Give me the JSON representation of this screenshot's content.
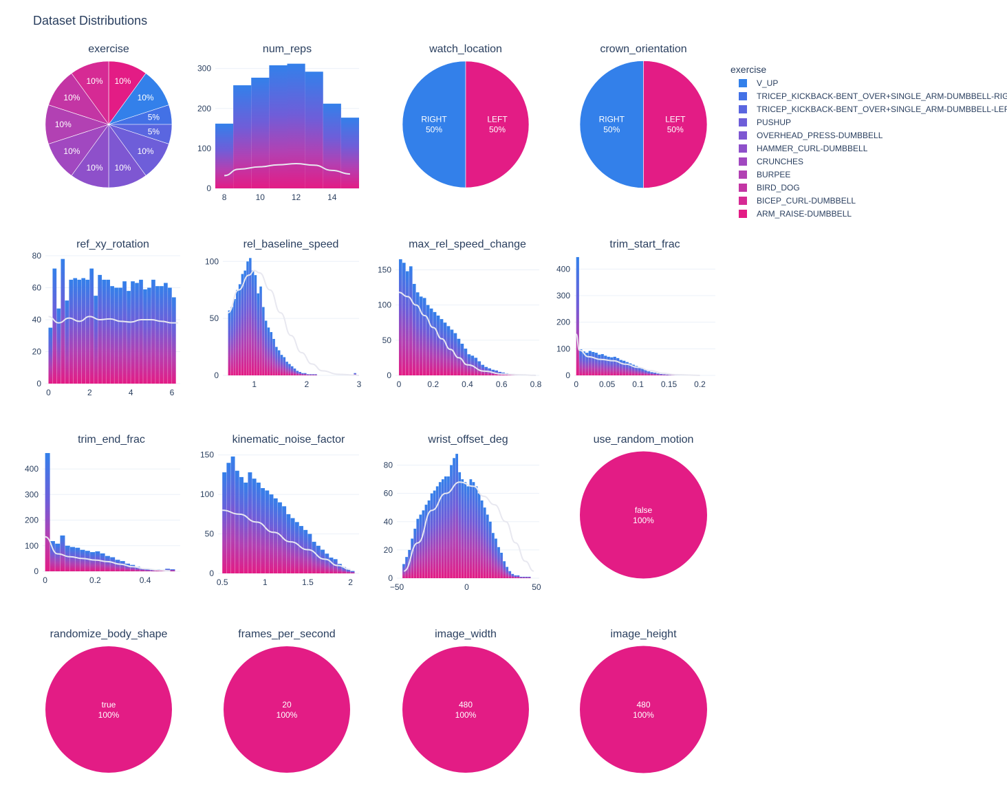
{
  "title": "Dataset Distributions",
  "legend": {
    "title": "exercise",
    "placement": "right",
    "items": [
      {
        "label": "V_UP",
        "color": "#3380ea"
      },
      {
        "label": "TRICEP_KICKBACK-BENT_OVER+SINGLE_ARM-DUMBBELL-RIGHT",
        "color": "#4371e6"
      },
      {
        "label": "TRICEP_KICKBACK-BENT_OVER+SINGLE_ARM-DUMBBELL-LEFT",
        "color": "#5a66e0"
      },
      {
        "label": "PUSHUP",
        "color": "#6e5ed9"
      },
      {
        "label": "OVERHEAD_PRESS-DUMBBELL",
        "color": "#7e57d2"
      },
      {
        "label": "HAMMER_CURL-DUMBBELL",
        "color": "#8e50ca"
      },
      {
        "label": "CRUNCHES",
        "color": "#a148c0"
      },
      {
        "label": "BURPEE",
        "color": "#b241b3"
      },
      {
        "label": "BIRD_DOG",
        "color": "#c335a4"
      },
      {
        "label": "BICEP_CURL-DUMBBELL",
        "color": "#d62a94"
      },
      {
        "label": "ARM_RAISE-DUMBBELL",
        "color": "#e31c85"
      }
    ]
  },
  "chart_data": [
    {
      "type": "pie",
      "title": "exercise",
      "labels": [
        "V_UP",
        "TRICEP_KICKBACK-BENT_OVER+SINGLE_ARM-DUMBBELL-RIGHT",
        "TRICEP_KICKBACK-BENT_OVER+SINGLE_ARM-DUMBBELL-LEFT",
        "PUSHUP",
        "OVERHEAD_PRESS-DUMBBELL",
        "HAMMER_CURL-DUMBBELL",
        "CRUNCHES",
        "BURPEE",
        "BIRD_DOG",
        "BICEP_CURL-DUMBBELL",
        "ARM_RAISE-DUMBBELL"
      ],
      "values": [
        10,
        10,
        5,
        5,
        10,
        10,
        10,
        10,
        10,
        10,
        10
      ],
      "text": [
        "10%",
        "10%",
        "5%",
        "5%",
        "10%",
        "10%",
        "10%",
        "10%",
        "10%",
        "10%",
        "10%"
      ],
      "colors": [
        "#e31c85",
        "#3380ea",
        "#4371e6",
        "#5a66e0",
        "#6e5ed9",
        "#7e57d2",
        "#8e50ca",
        "#a148c0",
        "#b241b3",
        "#c335a4",
        "#d62a94"
      ]
    },
    {
      "type": "bar",
      "title": "num_reps",
      "x": [
        8,
        9,
        10,
        11,
        12,
        13,
        14,
        15
      ],
      "values": [
        162,
        258,
        277,
        308,
        312,
        292,
        212,
        177
      ],
      "kde": [
        [
          8,
          32
        ],
        [
          8.8,
          48
        ],
        [
          10,
          54
        ],
        [
          11,
          59
        ],
        [
          12,
          62
        ],
        [
          13,
          58
        ],
        [
          14,
          45
        ],
        [
          15,
          36
        ]
      ],
      "xlim": [
        7.5,
        15.5
      ],
      "ylim": [
        0,
        320
      ],
      "xticks": [
        8,
        10,
        12,
        14
      ],
      "yticks": [
        0,
        100,
        200,
        300
      ]
    },
    {
      "type": "pie",
      "title": "watch_location",
      "labels": [
        "RIGHT",
        "LEFT"
      ],
      "values": [
        50,
        50
      ],
      "text": [
        "RIGHT\n50%",
        "LEFT\n50%"
      ],
      "colors": [
        "#3380ea",
        "#e31c85"
      ],
      "start": "left"
    },
    {
      "type": "pie",
      "title": "crown_orientation",
      "labels": [
        "RIGHT",
        "LEFT"
      ],
      "values": [
        50,
        50
      ],
      "text": [
        "RIGHT\n50%",
        "LEFT\n50%"
      ],
      "colors": [
        "#3380ea",
        "#e31c85"
      ],
      "start": "left"
    },
    {
      "type": "bar",
      "title": "ref_xy_rotation",
      "x0": 0,
      "dx": 0.2,
      "values": [
        35,
        72,
        47,
        78,
        52,
        65,
        66,
        65,
        66,
        65,
        72,
        55,
        68,
        65,
        65,
        61,
        60,
        60,
        64,
        58,
        64,
        63,
        65,
        59,
        60,
        65,
        61,
        61,
        63,
        60,
        54
      ],
      "kde": [
        [
          0,
          42
        ],
        [
          0.5,
          38
        ],
        [
          1,
          41
        ],
        [
          1.5,
          39
        ],
        [
          2,
          42
        ],
        [
          2.5,
          40
        ],
        [
          3,
          40.5
        ],
        [
          3.5,
          39
        ],
        [
          4,
          38.5
        ],
        [
          4.5,
          40
        ],
        [
          5,
          40
        ],
        [
          5.5,
          39
        ],
        [
          6,
          38
        ],
        [
          6.3,
          38
        ]
      ],
      "xlim": [
        -0.15,
        6.4
      ],
      "ylim": [
        0,
        80
      ],
      "xticks": [
        0,
        2,
        4,
        6
      ],
      "yticks": [
        0,
        20,
        40,
        60,
        80
      ]
    },
    {
      "type": "bar",
      "title": "rel_baseline_speed",
      "x0": 0.5,
      "dx": 0.05,
      "values": [
        57,
        60,
        67,
        75,
        80,
        89,
        92,
        100,
        103,
        92,
        88,
        72,
        78,
        60,
        48,
        42,
        38,
        32,
        25,
        22,
        18,
        16,
        12,
        10,
        8,
        6,
        4,
        3,
        2,
        2,
        1,
        1,
        1,
        1,
        0,
        0,
        0,
        0,
        0,
        0,
        0,
        0,
        0,
        0,
        0,
        0,
        0,
        0,
        2
      ],
      "kde": [
        [
          0.5,
          55
        ],
        [
          0.7,
          75
        ],
        [
          0.9,
          88
        ],
        [
          1.0,
          92
        ],
        [
          1.1,
          90
        ],
        [
          1.3,
          75
        ],
        [
          1.5,
          55
        ],
        [
          1.7,
          35
        ],
        [
          1.9,
          20
        ],
        [
          2.1,
          10
        ],
        [
          2.3,
          4
        ],
        [
          2.6,
          1
        ],
        [
          3.0,
          0
        ]
      ],
      "xlim": [
        0.4,
        3.0
      ],
      "ylim": [
        0,
        105
      ],
      "xticks": [
        1,
        2,
        3
      ],
      "yticks": [
        0,
        50,
        100
      ]
    },
    {
      "type": "bar",
      "title": "max_rel_speed_change",
      "x0": 0,
      "dx": 0.02,
      "values": [
        165,
        160,
        148,
        155,
        130,
        118,
        112,
        110,
        100,
        95,
        90,
        85,
        80,
        75,
        70,
        65,
        60,
        52,
        45,
        38,
        30,
        28,
        25,
        20,
        15,
        12,
        10,
        8,
        7,
        5,
        4,
        3,
        2,
        2,
        1,
        1,
        1,
        0,
        0,
        1
      ],
      "kde": [
        [
          0,
          118
        ],
        [
          0.05,
          112
        ],
        [
          0.1,
          100
        ],
        [
          0.15,
          85
        ],
        [
          0.2,
          68
        ],
        [
          0.25,
          52
        ],
        [
          0.3,
          37
        ],
        [
          0.35,
          25
        ],
        [
          0.4,
          15
        ],
        [
          0.5,
          6
        ],
        [
          0.6,
          2
        ],
        [
          0.7,
          1
        ],
        [
          0.8,
          0
        ]
      ],
      "xlim": [
        -0.02,
        0.82
      ],
      "ylim": [
        0,
        170
      ],
      "xticks": [
        0,
        0.2,
        0.4,
        0.6,
        0.8
      ],
      "yticks": [
        0,
        50,
        100,
        150
      ]
    },
    {
      "type": "bar",
      "title": "trim_start_frac",
      "x0": 0,
      "dx": 0.005,
      "values": [
        445,
        98,
        90,
        85,
        92,
        88,
        85,
        78,
        80,
        74,
        70,
        68,
        70,
        65,
        58,
        55,
        50,
        45,
        40,
        35,
        30,
        25,
        20,
        15,
        12,
        10,
        7,
        5,
        4,
        3,
        2,
        2,
        1,
        1,
        1,
        1,
        0,
        0,
        0,
        0,
        0,
        0
      ],
      "kde": [
        [
          0,
          155
        ],
        [
          0.005,
          95
        ],
        [
          0.02,
          70
        ],
        [
          0.04,
          60
        ],
        [
          0.06,
          55
        ],
        [
          0.08,
          42
        ],
        [
          0.1,
          30
        ],
        [
          0.12,
          18
        ],
        [
          0.14,
          8
        ],
        [
          0.16,
          3
        ],
        [
          0.2,
          0
        ]
      ],
      "xlim": [
        -0.003,
        0.225
      ],
      "ylim": [
        0,
        450
      ],
      "xticks": [
        0,
        0.05,
        0.1,
        0.15,
        0.2
      ],
      "yticks": [
        0,
        100,
        200,
        300,
        400
      ]
    },
    {
      "type": "bar",
      "title": "trim_end_frac",
      "x0": 0,
      "dx": 0.02,
      "values": [
        462,
        118,
        108,
        140,
        100,
        95,
        92,
        84,
        80,
        75,
        78,
        70,
        60,
        55,
        45,
        40,
        30,
        25,
        18,
        12,
        8,
        6,
        8,
        6,
        10,
        8
      ],
      "kde": [
        [
          0,
          135
        ],
        [
          0.05,
          68
        ],
        [
          0.1,
          57
        ],
        [
          0.15,
          50
        ],
        [
          0.2,
          44
        ],
        [
          0.25,
          38
        ],
        [
          0.3,
          28
        ],
        [
          0.35,
          18
        ],
        [
          0.4,
          10
        ],
        [
          0.45,
          5
        ],
        [
          0.5,
          2
        ]
      ],
      "xlim": [
        -0.01,
        0.54
      ],
      "ylim": [
        0,
        470
      ],
      "xticks": [
        0,
        0.2,
        0.4
      ],
      "yticks": [
        0,
        100,
        200,
        300,
        400
      ]
    },
    {
      "type": "bar",
      "title": "kinematic_noise_factor",
      "x0": 0.5,
      "dx": 0.05,
      "values": [
        128,
        140,
        148,
        130,
        122,
        115,
        128,
        120,
        115,
        108,
        105,
        100,
        95,
        90,
        85,
        75,
        70,
        65,
        60,
        55,
        50,
        40,
        35,
        30,
        25,
        20,
        18,
        12,
        8,
        5,
        3
      ],
      "kde": [
        [
          0.5,
          80
        ],
        [
          0.7,
          75
        ],
        [
          0.9,
          65
        ],
        [
          1.1,
          52
        ],
        [
          1.3,
          40
        ],
        [
          1.5,
          30
        ],
        [
          1.7,
          18
        ],
        [
          1.85,
          10
        ],
        [
          2.0,
          5
        ]
      ],
      "xlim": [
        0.45,
        2.1
      ],
      "ylim": [
        0,
        155
      ],
      "xticks": [
        0.5,
        1,
        1.5,
        2
      ],
      "yticks": [
        0,
        50,
        100,
        150
      ]
    },
    {
      "type": "bar",
      "title": "wrist_offset_deg",
      "x0": -46,
      "dx": 2,
      "values": [
        10,
        15,
        20,
        28,
        35,
        42,
        45,
        48,
        52,
        55,
        60,
        62,
        65,
        68,
        70,
        72,
        72,
        80,
        85,
        88,
        75,
        70,
        68,
        65,
        70,
        68,
        65,
        60,
        55,
        50,
        45,
        40,
        32,
        28,
        22,
        18,
        12,
        8,
        5,
        3,
        2,
        2,
        1,
        1,
        1,
        1,
        0
      ],
      "kde": [
        [
          -45,
          5
        ],
        [
          -35,
          25
        ],
        [
          -25,
          48
        ],
        [
          -15,
          60
        ],
        [
          -5,
          68
        ],
        [
          5,
          65
        ],
        [
          12,
          58
        ],
        [
          20,
          52
        ],
        [
          28,
          40
        ],
        [
          35,
          25
        ],
        [
          42,
          12
        ],
        [
          48,
          5
        ]
      ],
      "xlim": [
        -50,
        52
      ],
      "ylim": [
        0,
        90
      ],
      "xticks": [
        -50,
        0,
        50
      ],
      "yticks": [
        0,
        20,
        40,
        60,
        80
      ]
    },
    {
      "type": "pie",
      "title": "use_random_motion",
      "labels": [
        "false"
      ],
      "values": [
        100
      ],
      "text": [
        "false\n100%"
      ],
      "colors": [
        "#e31c85"
      ]
    },
    {
      "type": "pie",
      "title": "randomize_body_shape",
      "labels": [
        "true"
      ],
      "values": [
        100
      ],
      "text": [
        "true\n100%"
      ],
      "colors": [
        "#e31c85"
      ]
    },
    {
      "type": "pie",
      "title": "frames_per_second",
      "labels": [
        "20"
      ],
      "values": [
        100
      ],
      "text": [
        "20\n100%"
      ],
      "colors": [
        "#e31c85"
      ]
    },
    {
      "type": "pie",
      "title": "image_width",
      "labels": [
        "480"
      ],
      "values": [
        100
      ],
      "text": [
        "480\n100%"
      ],
      "colors": [
        "#e31c85"
      ]
    },
    {
      "type": "pie",
      "title": "image_height",
      "labels": [
        "480"
      ],
      "values": [
        100
      ],
      "text": [
        "480\n100%"
      ],
      "colors": [
        "#e31c85"
      ]
    }
  ]
}
